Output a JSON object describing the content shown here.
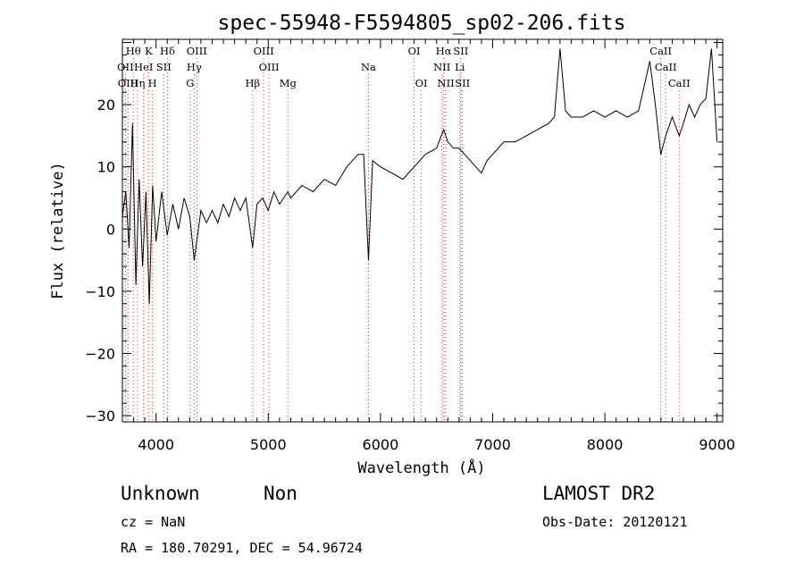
{
  "chart_data": {
    "type": "line",
    "title": "spec-55948-F5594805_sp02-206.fits",
    "xlabel": "Wavelength (Å)",
    "ylabel": "Flux (relative)",
    "xlim": [
      3700,
      9050
    ],
    "ylim": [
      -31,
      30.5
    ],
    "x_ticks": [
      4000,
      5000,
      6000,
      7000,
      8000,
      9000
    ],
    "y_ticks": [
      -30,
      -20,
      -10,
      0,
      10,
      20
    ],
    "grid": false,
    "line_color": "#000000",
    "marker_color": "#d62728",
    "spectral_lines": [
      {
        "label": "Hθ",
        "wavelength": 3797,
        "row": 0
      },
      {
        "label": "K",
        "wavelength": 3934,
        "row": 0
      },
      {
        "label": "Hδ",
        "wavelength": 4102,
        "row": 0
      },
      {
        "label": "OIII",
        "wavelength": 4363,
        "row": 0
      },
      {
        "label": "OIII",
        "wavelength": 4959,
        "row": 0
      },
      {
        "label": "OI",
        "wavelength": 6300,
        "row": 0
      },
      {
        "label": "Hα",
        "wavelength": 6563,
        "row": 0
      },
      {
        "label": "SII",
        "wavelength": 6716,
        "row": 0
      },
      {
        "label": "CaII",
        "wavelength": 8498,
        "row": 0
      },
      {
        "label": "OII",
        "wavelength": 3727,
        "row": 1
      },
      {
        "label": "HeI",
        "wavelength": 3889,
        "row": 1
      },
      {
        "label": "SII",
        "wavelength": 4069,
        "row": 1
      },
      {
        "label": "Hγ",
        "wavelength": 4340,
        "row": 1
      },
      {
        "label": "OIII",
        "wavelength": 5007,
        "row": 1
      },
      {
        "label": "Na",
        "wavelength": 5893,
        "row": 1
      },
      {
        "label": "NII",
        "wavelength": 6548,
        "row": 1
      },
      {
        "label": "Li",
        "wavelength": 6708,
        "row": 1
      },
      {
        "label": "CaII",
        "wavelength": 8542,
        "row": 1
      },
      {
        "label": "OIII",
        "wavelength": 3750,
        "row": 2
      },
      {
        "label": "Hη",
        "wavelength": 3835,
        "row": 2
      },
      {
        "label": "H",
        "wavelength": 3968,
        "row": 2
      },
      {
        "label": "G",
        "wavelength": 4304,
        "row": 2
      },
      {
        "label": "Hβ",
        "wavelength": 4861,
        "row": 2
      },
      {
        "label": "Mg",
        "wavelength": 5175,
        "row": 2
      },
      {
        "label": "OI",
        "wavelength": 6364,
        "row": 2
      },
      {
        "label": "NII",
        "wavelength": 6583,
        "row": 2
      },
      {
        "label": "SII",
        "wavelength": 6731,
        "row": 2
      },
      {
        "label": "CaII",
        "wavelength": 8662,
        "row": 2
      }
    ],
    "spectrum": [
      [
        3700,
        2
      ],
      [
        3730,
        6
      ],
      [
        3760,
        -3
      ],
      [
        3790,
        17
      ],
      [
        3820,
        -9
      ],
      [
        3850,
        8
      ],
      [
        3880,
        -6
      ],
      [
        3910,
        6
      ],
      [
        3940,
        -12
      ],
      [
        3970,
        7
      ],
      [
        4000,
        -2
      ],
      [
        4050,
        6
      ],
      [
        4100,
        -1
      ],
      [
        4150,
        4
      ],
      [
        4200,
        0
      ],
      [
        4250,
        5
      ],
      [
        4300,
        2
      ],
      [
        4340,
        -5
      ],
      [
        4400,
        3
      ],
      [
        4450,
        1
      ],
      [
        4500,
        3
      ],
      [
        4550,
        1
      ],
      [
        4600,
        4
      ],
      [
        4650,
        2
      ],
      [
        4700,
        5
      ],
      [
        4750,
        3
      ],
      [
        4800,
        5
      ],
      [
        4861,
        -3
      ],
      [
        4900,
        4
      ],
      [
        4950,
        5
      ],
      [
        5000,
        3
      ],
      [
        5050,
        6
      ],
      [
        5100,
        4
      ],
      [
        5175,
        6
      ],
      [
        5200,
        5
      ],
      [
        5300,
        7
      ],
      [
        5400,
        6
      ],
      [
        5500,
        8
      ],
      [
        5600,
        7
      ],
      [
        5700,
        10
      ],
      [
        5750,
        11
      ],
      [
        5800,
        12
      ],
      [
        5850,
        12
      ],
      [
        5893,
        -5
      ],
      [
        5930,
        11
      ],
      [
        6000,
        10
      ],
      [
        6100,
        9
      ],
      [
        6200,
        8
      ],
      [
        6300,
        10
      ],
      [
        6400,
        12
      ],
      [
        6500,
        13
      ],
      [
        6563,
        16
      ],
      [
        6600,
        14
      ],
      [
        6650,
        13
      ],
      [
        6700,
        13
      ],
      [
        6750,
        12
      ],
      [
        6800,
        11
      ],
      [
        6850,
        10
      ],
      [
        6900,
        9
      ],
      [
        6950,
        11
      ],
      [
        7000,
        12
      ],
      [
        7100,
        14
      ],
      [
        7200,
        14
      ],
      [
        7300,
        15
      ],
      [
        7400,
        16
      ],
      [
        7500,
        17
      ],
      [
        7550,
        18
      ],
      [
        7600,
        29
      ],
      [
        7650,
        19
      ],
      [
        7700,
        18
      ],
      [
        7800,
        18
      ],
      [
        7900,
        19
      ],
      [
        8000,
        18
      ],
      [
        8100,
        19
      ],
      [
        8200,
        18
      ],
      [
        8300,
        19
      ],
      [
        8400,
        27
      ],
      [
        8450,
        20
      ],
      [
        8498,
        12
      ],
      [
        8542,
        15
      ],
      [
        8600,
        18
      ],
      [
        8662,
        15
      ],
      [
        8700,
        17
      ],
      [
        8750,
        20
      ],
      [
        8800,
        18
      ],
      [
        8850,
        20
      ],
      [
        8900,
        21
      ],
      [
        8950,
        29
      ],
      [
        9000,
        14
      ]
    ]
  },
  "info": {
    "class": "Unknown",
    "subclass": "Non",
    "survey": "LAMOST DR2",
    "cz": "cz = NaN",
    "obs_date": "Obs-Date: 20120121",
    "coords": "RA = 180.70291, DEC =  54.96724"
  }
}
